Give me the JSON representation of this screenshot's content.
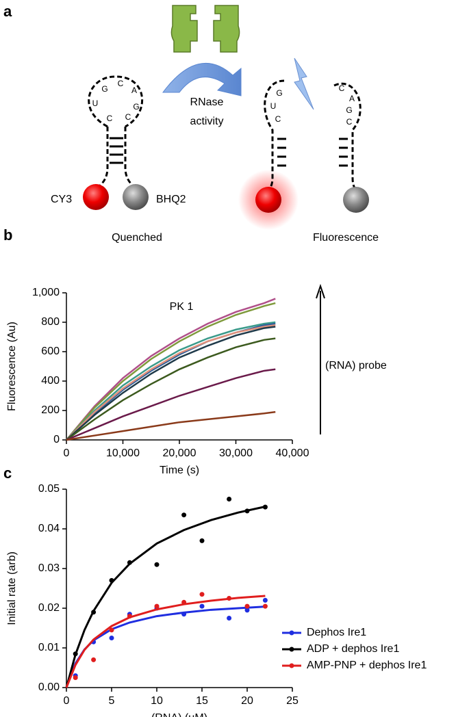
{
  "panel_a": {
    "label": "a",
    "left_loop": [
      "G",
      "C",
      "A",
      "U",
      "G",
      "C",
      "C"
    ],
    "arrow_label": [
      "RNase",
      "activity"
    ],
    "donor": "CY3",
    "quencher": "BHQ2",
    "left_caption": "Quenched",
    "right_caption": "Fluorescence",
    "fragment_1": [
      "G",
      "U",
      "C"
    ],
    "fragment_2": [
      "C",
      "A",
      "G",
      "C"
    ]
  },
  "chart_data": [
    {
      "type": "line",
      "panel_label": "b",
      "title": "PK 1",
      "x_label": "Time (s)",
      "y_label": "Fluorescence (Au)",
      "annotation": "(RNA) probe",
      "x": [
        0,
        5000,
        10000,
        15000,
        20000,
        25000,
        30000,
        35000,
        37000
      ],
      "xlim": [
        0,
        40000
      ],
      "xticks": [
        0,
        {
          "value": 10000,
          "label": "10,000"
        },
        {
          "value": 20000,
          "label": "20,000"
        },
        {
          "value": 30000,
          "label": "30,000"
        },
        {
          "value": 40000,
          "label": "40,000"
        }
      ],
      "ylim": [
        0,
        1000
      ],
      "yticks": [
        0,
        200,
        400,
        600,
        800,
        {
          "value": 1000,
          "label": "1,000"
        }
      ],
      "series": [
        {
          "color": "#b0508a",
          "values": [
            0,
            230,
            420,
            570,
            690,
            790,
            870,
            930,
            960
          ]
        },
        {
          "color": "#7f9a3c",
          "values": [
            0,
            220,
            400,
            550,
            670,
            770,
            850,
            910,
            930
          ]
        },
        {
          "color": "#3a9a8a",
          "values": [
            0,
            200,
            370,
            500,
            610,
            690,
            750,
            790,
            800
          ]
        },
        {
          "color": "#2f5f9a",
          "values": [
            0,
            180,
            340,
            470,
            580,
            670,
            730,
            780,
            790
          ]
        },
        {
          "color": "#e0907a",
          "values": [
            0,
            190,
            350,
            480,
            590,
            670,
            730,
            770,
            780
          ]
        },
        {
          "color": "#1f3a4a",
          "values": [
            0,
            170,
            320,
            450,
            560,
            640,
            710,
            760,
            770
          ]
        },
        {
          "color": "#3c5a1e",
          "values": [
            0,
            140,
            270,
            380,
            480,
            560,
            630,
            680,
            690
          ]
        },
        {
          "color": "#6a1a4a",
          "values": [
            0,
            80,
            160,
            230,
            300,
            360,
            420,
            470,
            480
          ]
        },
        {
          "color": "#8a3a1a",
          "values": [
            0,
            30,
            60,
            90,
            120,
            140,
            160,
            180,
            190
          ]
        }
      ]
    },
    {
      "type": "scatter",
      "panel_label": "c",
      "x_label": "(RNA) (μM)",
      "y_label": "Initial rate (arb)",
      "legend": "lower right",
      "x": [
        1,
        3,
        5,
        7,
        10,
        13,
        15,
        18,
        20,
        22
      ],
      "fit_x": [
        0,
        1,
        2,
        3,
        5,
        7,
        10,
        13,
        16,
        19,
        22
      ],
      "xlim": [
        0,
        25
      ],
      "xticks": [
        0,
        5,
        10,
        15,
        20,
        25
      ],
      "ylim": [
        0,
        0.05
      ],
      "yticks": [
        {
          "value": 0,
          "label": "0.00"
        },
        {
          "value": 0.01,
          "label": "0.01"
        },
        {
          "value": 0.02,
          "label": "0.02"
        },
        {
          "value": 0.03,
          "label": "0.03"
        },
        {
          "value": 0.04,
          "label": "0.04"
        },
        {
          "value": 0.05,
          "label": "0.05"
        }
      ],
      "series": [
        {
          "name": "Dephos Ire1",
          "color": "#1f2ee0",
          "values": [
            0.003,
            0.0115,
            0.0125,
            0.0185,
            0.02,
            0.0185,
            0.0205,
            0.0175,
            0.0195,
            0.022
          ],
          "fit_values": [
            0,
            0.0061,
            0.0096,
            0.0119,
            0.0147,
            0.0164,
            0.018,
            0.0189,
            0.0196,
            0.02,
            0.0204
          ]
        },
        {
          "name": "ADP + dephos Ire1",
          "color": "#000000",
          "values": [
            0.0085,
            0.019,
            0.027,
            0.0315,
            0.031,
            0.0435,
            0.037,
            0.0475,
            0.0445,
            0.0455
          ],
          "fit_values": [
            0,
            0.0083,
            0.0145,
            0.0193,
            0.0264,
            0.0312,
            0.0363,
            0.0397,
            0.0422,
            0.0441,
            0.0456
          ]
        },
        {
          "name": "AMP-PNP + dephos Ire1",
          "color": "#e01e1e",
          "values": [
            0.0025,
            0.007,
            0.0145,
            0.018,
            0.0205,
            0.0215,
            0.0235,
            0.0225,
            0.0205,
            0.0205
          ],
          "fit_values": [
            0,
            0.0057,
            0.0095,
            0.0121,
            0.0155,
            0.0177,
            0.0197,
            0.021,
            0.0219,
            0.0226,
            0.0231
          ]
        }
      ]
    }
  ]
}
